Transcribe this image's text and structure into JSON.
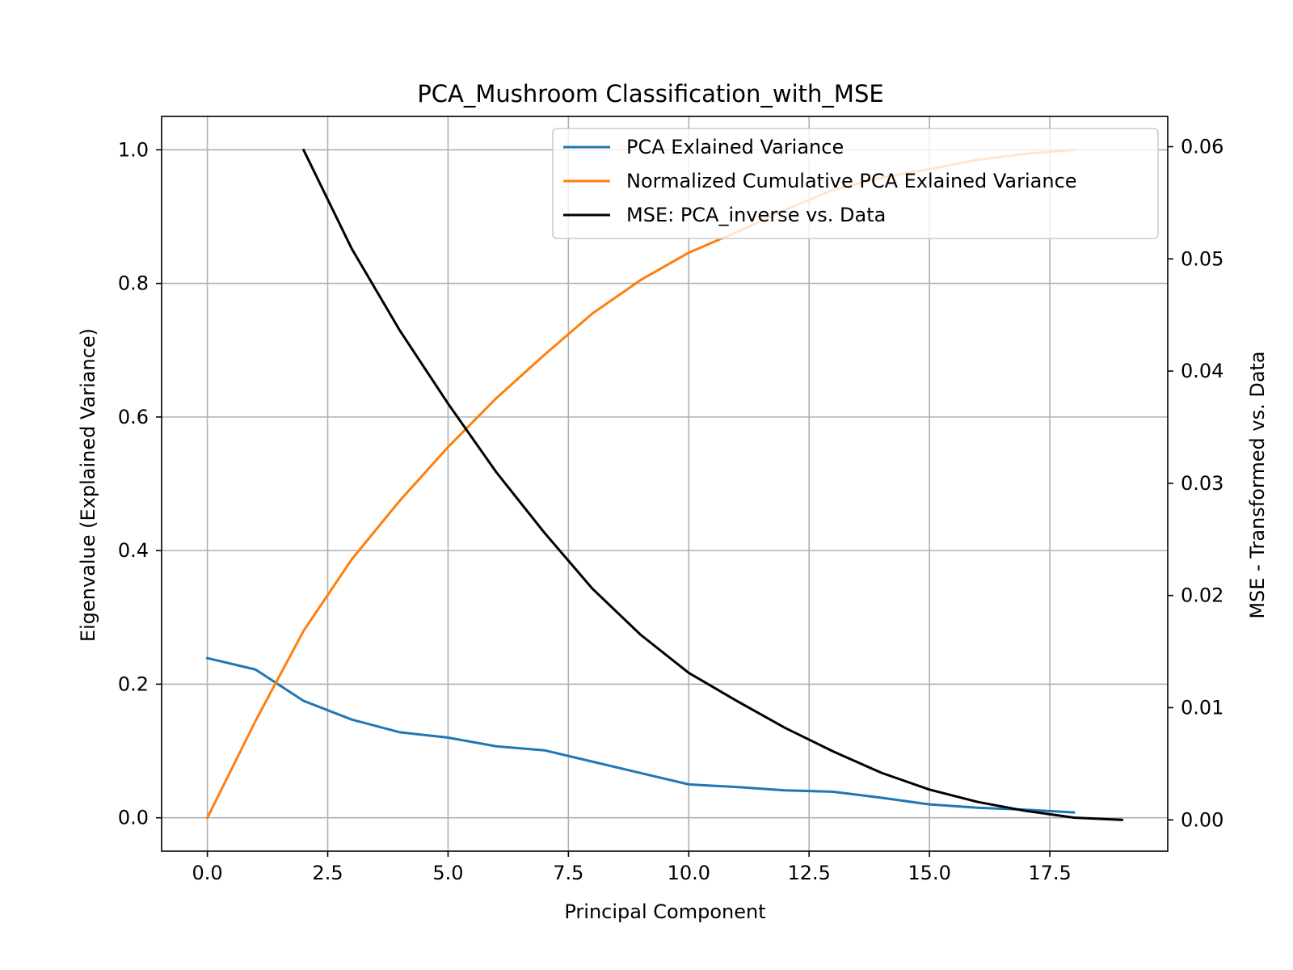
{
  "chart_data": {
    "type": "line",
    "title": "PCA_Mushroom Classification_with_MSE",
    "xlabel": "Principal Component",
    "ylabel": "Eigenvalue (Explained Variance)",
    "ylabel_right": "MSE - Transformed vs. Data",
    "xlim": [
      -0.95,
      19.95
    ],
    "ylim": [
      -0.05,
      1.05
    ],
    "ylim_right": [
      -0.00279,
      0.0627
    ],
    "x_ticks": [
      0.0,
      2.5,
      5.0,
      7.5,
      10.0,
      12.5,
      15.0,
      17.5
    ],
    "x_tick_labels": [
      "0.0",
      "2.5",
      "5.0",
      "7.5",
      "10.0",
      "12.5",
      "15.0",
      "17.5"
    ],
    "y_ticks": [
      0.0,
      0.2,
      0.4,
      0.6,
      0.8,
      1.0
    ],
    "y_tick_labels": [
      "0.0",
      "0.2",
      "0.4",
      "0.6",
      "0.8",
      "1.0"
    ],
    "y_ticks_right": [
      0.0,
      0.01,
      0.02,
      0.03,
      0.04,
      0.05,
      0.06
    ],
    "y_tick_labels_right": [
      "0.00",
      "0.01",
      "0.02",
      "0.03",
      "0.04",
      "0.05",
      "0.06"
    ],
    "grid": true,
    "legend_position": "top-right",
    "series": [
      {
        "name": "PCA Exlained Variance",
        "axis": "left",
        "color": "#1f77b4",
        "x": [
          0,
          1,
          2,
          3,
          4,
          5,
          6,
          7,
          8,
          9,
          10,
          11,
          12,
          13,
          14,
          15,
          16,
          17,
          18
        ],
        "values": [
          0.239,
          0.222,
          0.175,
          0.147,
          0.128,
          0.12,
          0.107,
          0.101,
          0.084,
          0.067,
          0.05,
          0.046,
          0.041,
          0.039,
          0.03,
          0.02,
          0.015,
          0.012,
          0.008
        ]
      },
      {
        "name": "Normalized Cumulative PCA Exlained Variance",
        "axis": "left",
        "color": "#ff7f0e",
        "x": [
          0,
          1,
          2,
          3,
          4,
          5,
          6,
          7,
          8,
          9,
          10,
          11,
          12,
          13,
          14,
          15,
          16,
          17,
          18
        ],
        "values": [
          0.0,
          0.145,
          0.28,
          0.387,
          0.475,
          0.555,
          0.628,
          0.693,
          0.755,
          0.805,
          0.846,
          0.877,
          0.91,
          0.94,
          0.958,
          0.971,
          0.985,
          0.994,
          1.0
        ]
      },
      {
        "name": "MSE: PCA_inverse vs. Data",
        "axis": "right",
        "color": "#000000",
        "x": [
          2,
          3,
          4,
          5,
          6,
          7,
          8,
          9,
          10,
          11,
          12,
          13,
          14,
          15,
          16,
          17,
          18,
          19
        ],
        "values": [
          0.0597,
          0.0509,
          0.0436,
          0.0371,
          0.031,
          0.0256,
          0.0206,
          0.0165,
          0.0131,
          0.0106,
          0.0082,
          0.0061,
          0.0042,
          0.0027,
          0.0016,
          0.0008,
          0.0002,
          0.0
        ]
      }
    ]
  }
}
